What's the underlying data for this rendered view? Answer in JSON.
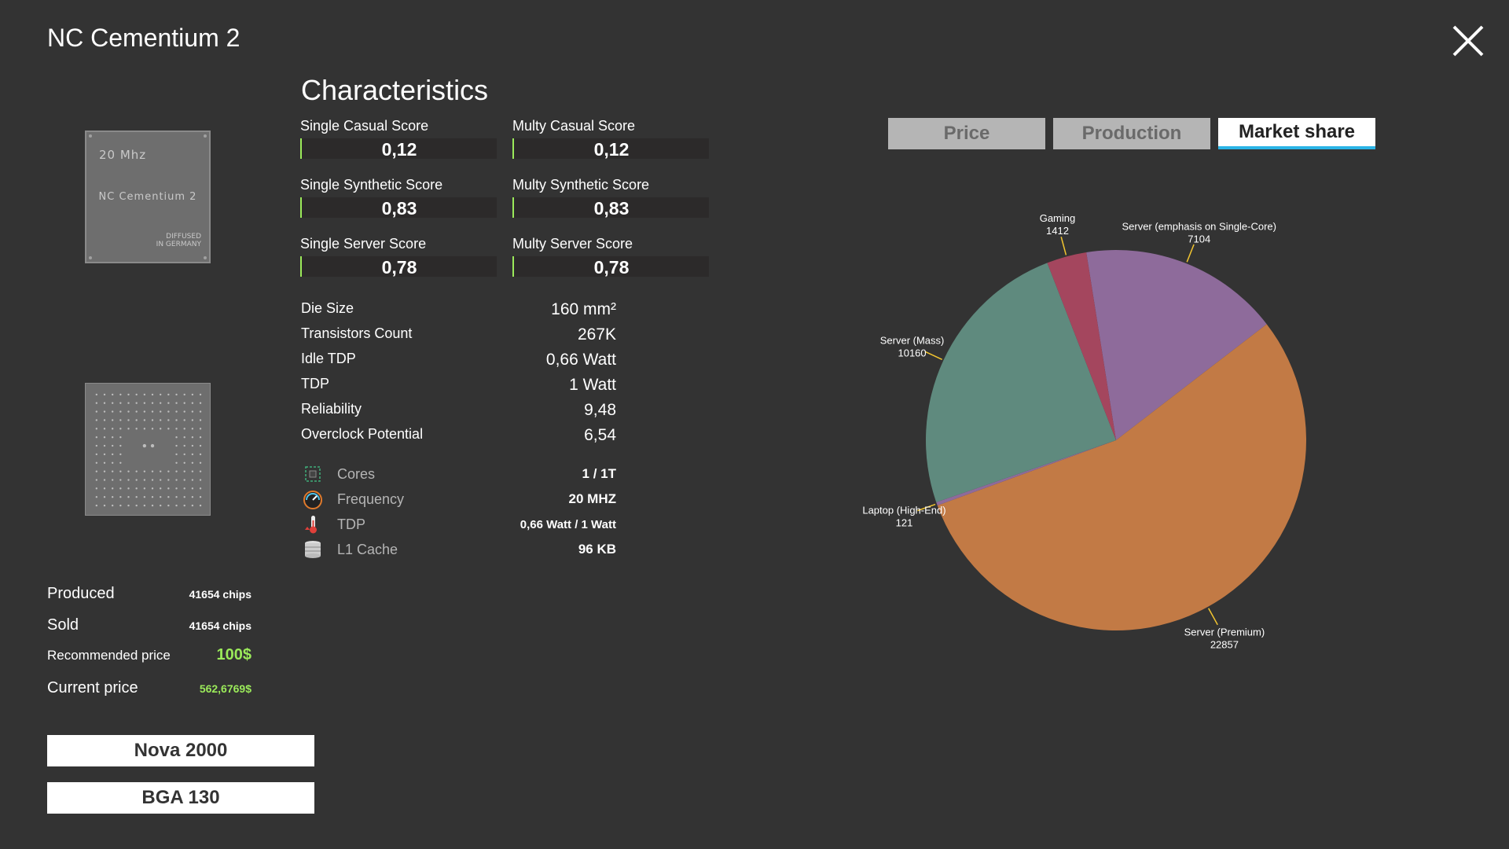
{
  "window": {
    "title": "NC Cementium 2"
  },
  "chip": {
    "freq": "20 Mhz",
    "name": "NC Cementium 2",
    "diffused_1": "DIFFUSED",
    "diffused_2": "IN GERMANY"
  },
  "stats": {
    "produced_label": "Produced",
    "produced_value": "41654 chips",
    "sold_label": "Sold",
    "sold_value": "41654 chips",
    "recommended_label": "Recommended price",
    "recommended_value": "100$",
    "current_label": "Current price",
    "current_value": "562,6769$"
  },
  "buttons": {
    "socket": "Nova 2000",
    "package": "BGA 130"
  },
  "characteristics": {
    "title": "Characteristics",
    "scores": [
      {
        "label": "Single Casual Score",
        "value": "0,12"
      },
      {
        "label": "Multy Casual Score",
        "value": "0,12"
      },
      {
        "label": "Single Synthetic Score",
        "value": "0,83"
      },
      {
        "label": "Multy Synthetic Score",
        "value": "0,83"
      },
      {
        "label": "Single Server Score",
        "value": "0,78"
      },
      {
        "label": "Multy Server Score",
        "value": "0,78"
      }
    ],
    "specs": [
      {
        "label": "Die Size",
        "value": "160 mm²"
      },
      {
        "label": "Transistors Count",
        "value": "267K"
      },
      {
        "label": "Idle TDP",
        "value": "0,66 Watt"
      },
      {
        "label": "TDP",
        "value": "1 Watt"
      },
      {
        "label": "Reliability",
        "value": "9,48"
      },
      {
        "label": "Overclock Potential",
        "value": "6,54"
      }
    ],
    "features": [
      {
        "label": "Cores",
        "value": "1 / 1T",
        "icon": "cpu-core-icon"
      },
      {
        "label": "Frequency",
        "value": "20 MHZ",
        "icon": "speedometer-icon"
      },
      {
        "label": "TDP",
        "value": "0,66 Watt / 1 Watt",
        "icon": "thermometer-icon"
      },
      {
        "label": "L1 Cache",
        "value": "96 KB",
        "icon": "database-icon"
      }
    ]
  },
  "tabs": {
    "price": "Price",
    "production": "Production",
    "market_share": "Market share",
    "active": "Market share"
  },
  "chart_data": {
    "type": "pie",
    "slices": [
      {
        "name": "Server (emphasis on Single-Core)",
        "value": 7104,
        "color": "#8e6b9b"
      },
      {
        "name": "Server (Premium)",
        "value": 22857,
        "color": "#c27a45"
      },
      {
        "name": "Laptop (High-End)",
        "value": 121,
        "color": "#8e6b9b"
      },
      {
        "name": "Server (Mass)",
        "value": 10160,
        "color": "#5f8a7e"
      },
      {
        "name": "Gaming",
        "value": 1412,
        "color": "#a4465e"
      }
    ]
  }
}
